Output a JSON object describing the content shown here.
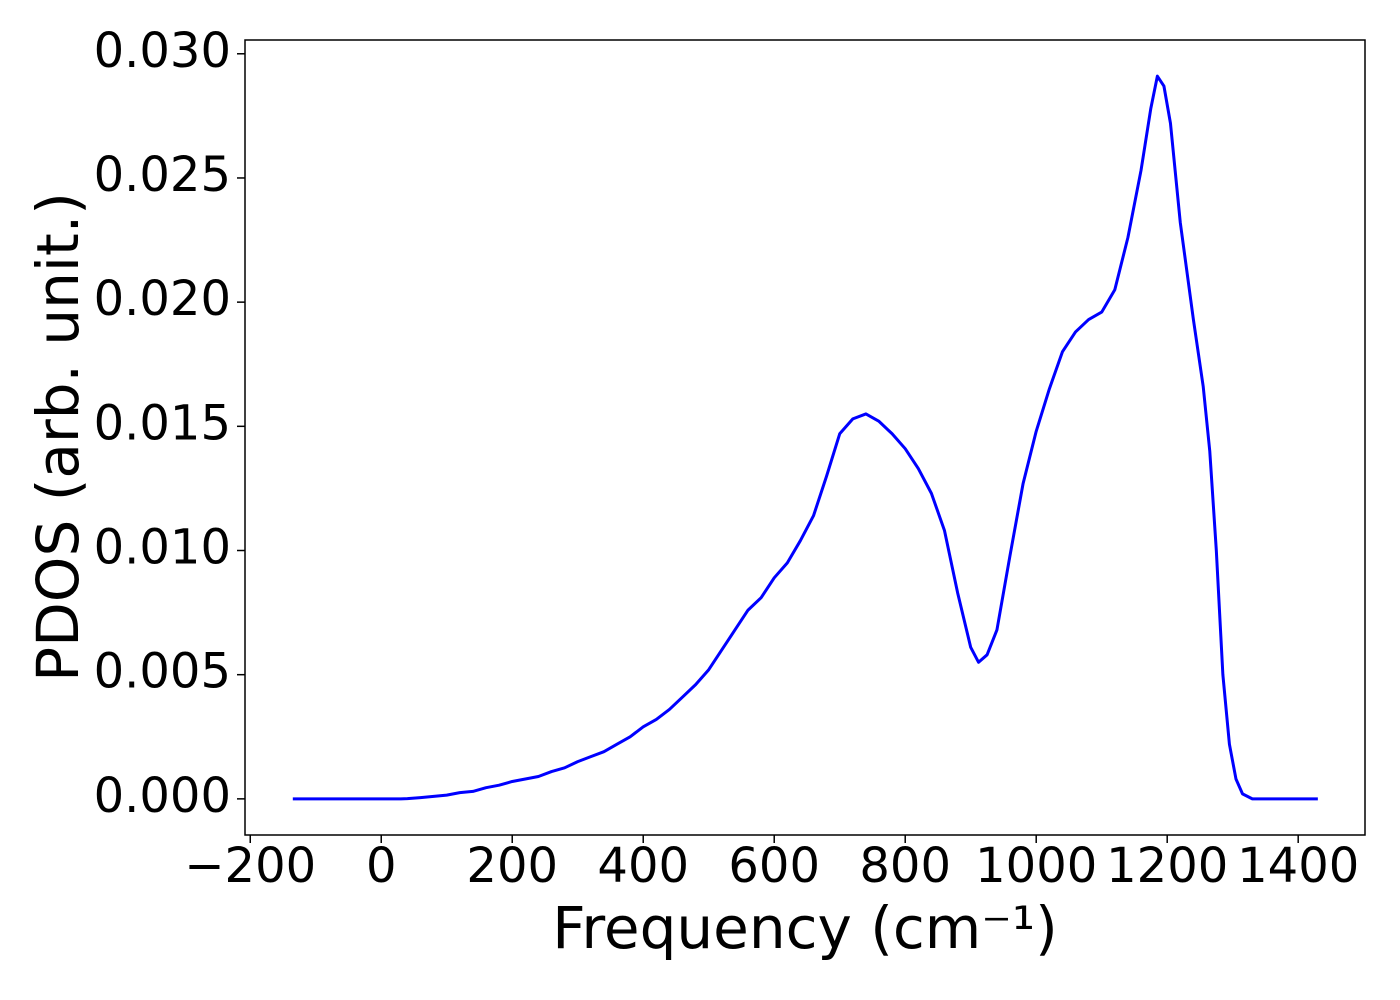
{
  "chart_data": {
    "type": "line",
    "x_label": "Frequency (cm⁻¹)",
    "y_label": "PDOS (arb. unit.)",
    "xlim": [
      -208,
      1502
    ],
    "ylim": [
      -0.001455,
      0.030555
    ],
    "xticks": [
      {
        "value": -200,
        "label": "−200"
      },
      0,
      200,
      400,
      600,
      800,
      1000,
      1200,
      1400
    ],
    "yticks": [
      {
        "value": 0,
        "label": "0.000"
      },
      {
        "value": 0.005,
        "label": "0.005"
      },
      {
        "value": 0.01,
        "label": "0.010"
      },
      {
        "value": 0.015,
        "label": "0.015"
      },
      {
        "value": 0.02,
        "label": "0.020"
      },
      {
        "value": 0.025,
        "label": "0.025"
      },
      {
        "value": 0.03,
        "label": "0.030"
      }
    ],
    "x": [
      -135,
      -100,
      -50,
      0,
      30,
      40,
      60,
      80,
      100,
      120,
      140,
      160,
      180,
      200,
      220,
      240,
      260,
      280,
      300,
      320,
      340,
      360,
      380,
      400,
      420,
      440,
      460,
      480,
      500,
      520,
      540,
      560,
      580,
      600,
      620,
      640,
      660,
      680,
      700,
      720,
      740,
      760,
      780,
      800,
      820,
      840,
      860,
      880,
      900,
      912,
      925,
      940,
      960,
      980,
      1000,
      1020,
      1040,
      1060,
      1080,
      1100,
      1120,
      1140,
      1160,
      1175,
      1185,
      1195,
      1205,
      1220,
      1240,
      1255,
      1265,
      1275,
      1285,
      1295,
      1305,
      1315,
      1330,
      1400,
      1430
    ],
    "series": [
      {
        "color": "#0000ff",
        "values": [
          0,
          0,
          0,
          0,
          0,
          1e-05,
          5e-05,
          0.0001,
          0.00015,
          0.00025,
          0.0003,
          0.00045,
          0.00055,
          0.0007,
          0.0008,
          0.0009,
          0.0011,
          0.00125,
          0.0015,
          0.0017,
          0.0019,
          0.0022,
          0.0025,
          0.0029,
          0.0032,
          0.0036,
          0.0041,
          0.0046,
          0.0052,
          0.006,
          0.0068,
          0.0076,
          0.0081,
          0.0089,
          0.0095,
          0.0104,
          0.0114,
          0.013,
          0.0147,
          0.0153,
          0.0155,
          0.0152,
          0.0147,
          0.0141,
          0.0133,
          0.0123,
          0.0108,
          0.0083,
          0.0061,
          0.0055,
          0.0058,
          0.0068,
          0.0098,
          0.0127,
          0.0148,
          0.0165,
          0.018,
          0.0188,
          0.0193,
          0.0196,
          0.0205,
          0.0226,
          0.0253,
          0.0278,
          0.0291,
          0.0287,
          0.0272,
          0.0232,
          0.0193,
          0.0166,
          0.014,
          0.01,
          0.005,
          0.0022,
          0.0008,
          0.0002,
          0,
          0,
          0
        ]
      }
    ]
  }
}
